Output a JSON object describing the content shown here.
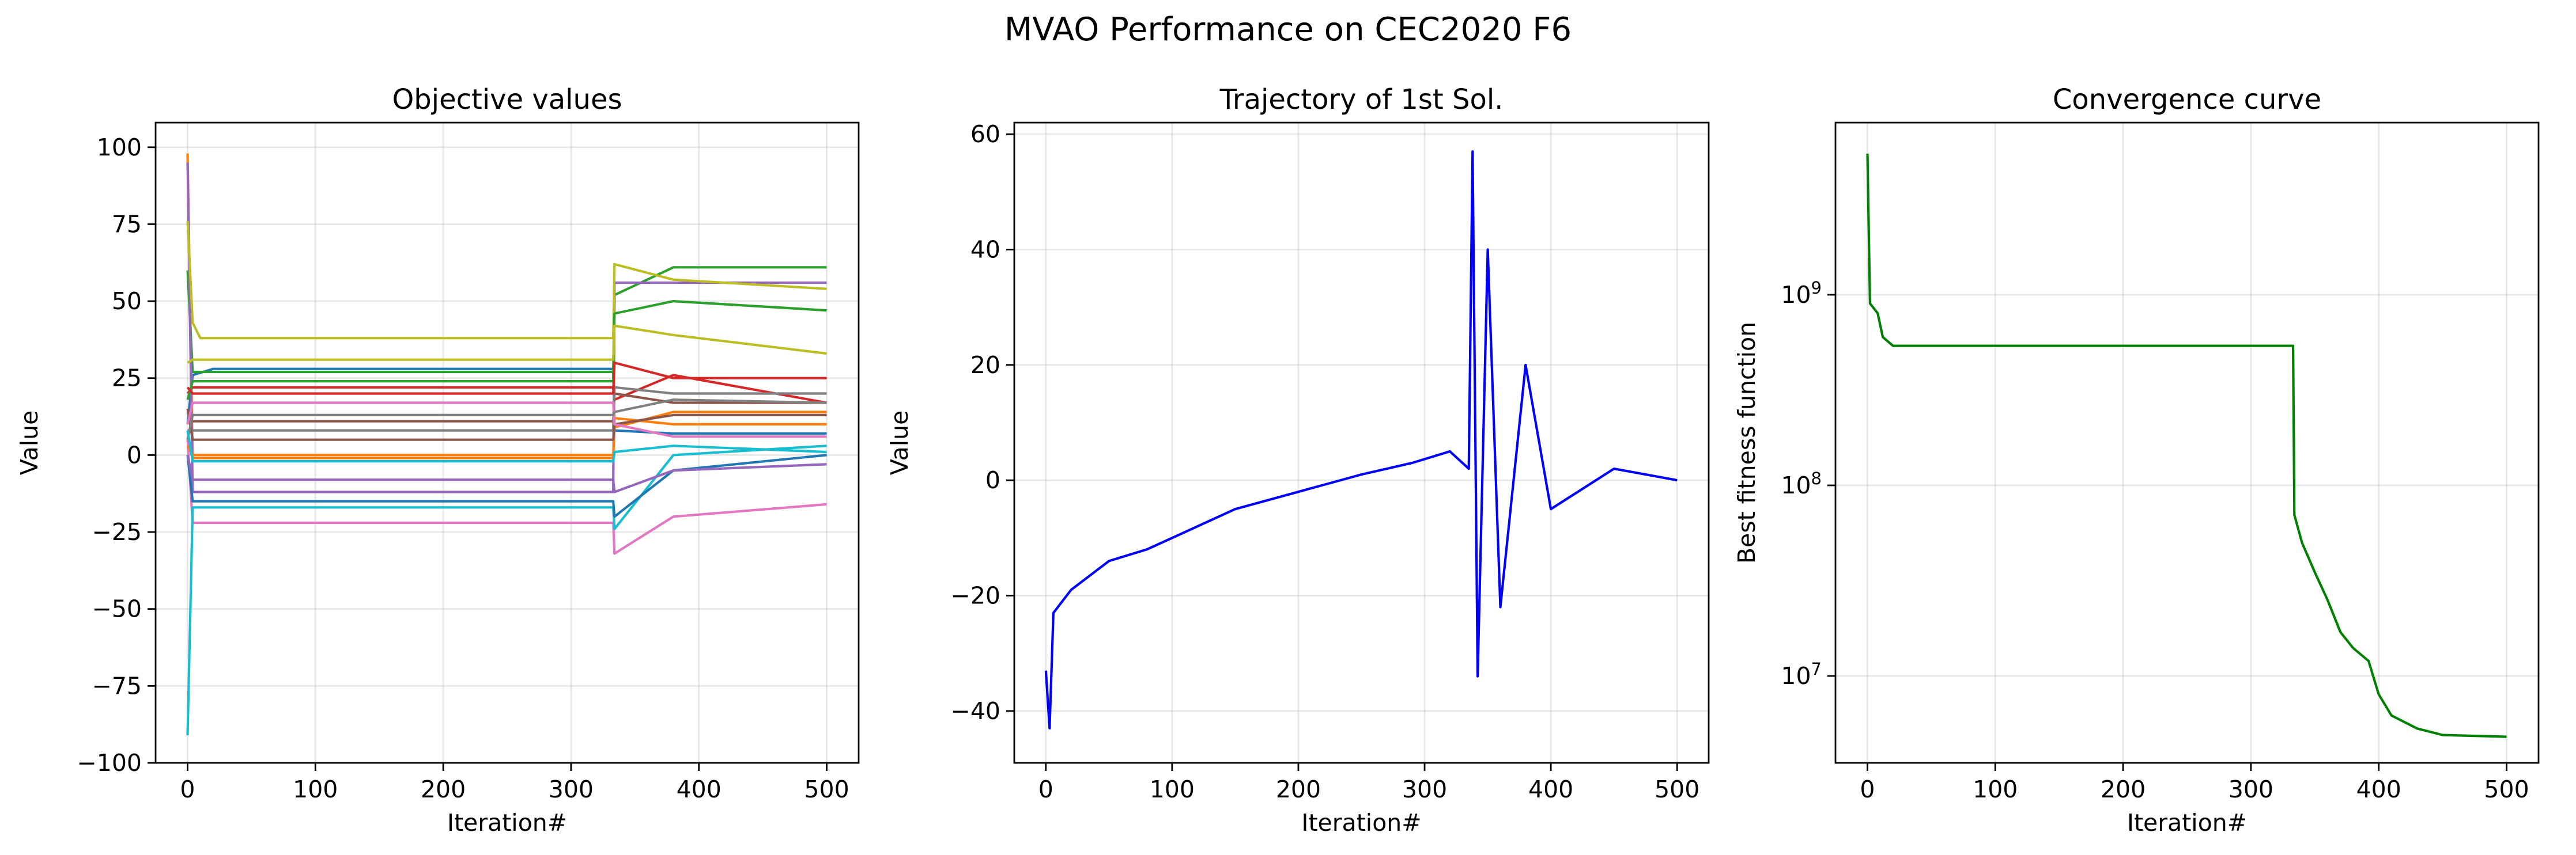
{
  "figure": {
    "title": "MVAO Performance on CEC2020 F6"
  },
  "chart_data": [
    {
      "type": "line",
      "title": "Objective values",
      "xlabel": "Iteration#",
      "ylabel": "Value",
      "xlim": [
        -25,
        525
      ],
      "ylim": [
        -100,
        108
      ],
      "xticks": [
        0,
        100,
        200,
        300,
        400,
        500
      ],
      "yticks": [
        -100,
        -75,
        -50,
        -25,
        0,
        25,
        50,
        75,
        100
      ],
      "grid": true,
      "legend": "none",
      "colors": [
        "#1f77b4",
        "#ff7f0e",
        "#2ca02c",
        "#d62728",
        "#9467bd",
        "#8c564b",
        "#e377c2",
        "#7f7f7f",
        "#bcbd22",
        "#17becf"
      ],
      "series": [
        {
          "values": [
            [
              0,
              10
            ],
            [
              4,
              26
            ],
            [
              20,
              28
            ],
            [
              333,
              28
            ],
            [
              334,
              8
            ],
            [
              380,
              7
            ],
            [
              500,
              7
            ]
          ]
        },
        {
          "values": [
            [
              0,
              98
            ],
            [
              4,
              -1
            ],
            [
              20,
              -1
            ],
            [
              333,
              -1
            ],
            [
              334,
              12
            ],
            [
              380,
              10
            ],
            [
              500,
              10
            ]
          ]
        },
        {
          "values": [
            [
              0,
              60
            ],
            [
              4,
              27
            ],
            [
              20,
              27
            ],
            [
              333,
              27
            ],
            [
              334,
              52
            ],
            [
              380,
              61
            ],
            [
              500,
              61
            ]
          ]
        },
        {
          "values": [
            [
              0,
              20
            ],
            [
              4,
              22
            ],
            [
              20,
              22
            ],
            [
              333,
              22
            ],
            [
              334,
              18
            ],
            [
              380,
              26
            ],
            [
              500,
              17
            ]
          ]
        },
        {
          "values": [
            [
              0,
              95
            ],
            [
              4,
              -12
            ],
            [
              20,
              -12
            ],
            [
              333,
              -12
            ],
            [
              334,
              56
            ],
            [
              380,
              56
            ],
            [
              500,
              56
            ]
          ]
        },
        {
          "values": [
            [
              0,
              12
            ],
            [
              4,
              11
            ],
            [
              20,
              11
            ],
            [
              333,
              11
            ],
            [
              334,
              20
            ],
            [
              380,
              17
            ],
            [
              500,
              17
            ]
          ]
        },
        {
          "values": [
            [
              0,
              5
            ],
            [
              4,
              -22
            ],
            [
              20,
              -22
            ],
            [
              333,
              -22
            ],
            [
              334,
              -32
            ],
            [
              380,
              -20
            ],
            [
              500,
              -16
            ]
          ]
        },
        {
          "values": [
            [
              0,
              8
            ],
            [
              4,
              8
            ],
            [
              20,
              8
            ],
            [
              333,
              8
            ],
            [
              334,
              22
            ],
            [
              380,
              20
            ],
            [
              500,
              20
            ]
          ]
        },
        {
          "values": [
            [
              0,
              76
            ],
            [
              4,
              43
            ],
            [
              10,
              38
            ],
            [
              333,
              38
            ],
            [
              334,
              62
            ],
            [
              380,
              57
            ],
            [
              500,
              54
            ]
          ]
        },
        {
          "values": [
            [
              0,
              -91
            ],
            [
              4,
              -17
            ],
            [
              20,
              -17
            ],
            [
              333,
              -17
            ],
            [
              334,
              -24
            ],
            [
              380,
              0
            ],
            [
              500,
              3
            ]
          ]
        },
        {
          "values": [
            [
              0,
              0
            ],
            [
              4,
              -15
            ],
            [
              20,
              -15
            ],
            [
              333,
              -15
            ],
            [
              334,
              -20
            ],
            [
              380,
              -5
            ],
            [
              500,
              0
            ]
          ]
        },
        {
          "values": [
            [
              0,
              3
            ],
            [
              4,
              0
            ],
            [
              20,
              0
            ],
            [
              333,
              0
            ],
            [
              334,
              9
            ],
            [
              380,
              14
            ],
            [
              500,
              14
            ]
          ]
        },
        {
          "values": [
            [
              0,
              18
            ],
            [
              4,
              24
            ],
            [
              20,
              24
            ],
            [
              333,
              24
            ],
            [
              334,
              46
            ],
            [
              380,
              50
            ],
            [
              500,
              47
            ]
          ]
        },
        {
          "values": [
            [
              0,
              22
            ],
            [
              4,
              20
            ],
            [
              20,
              20
            ],
            [
              333,
              20
            ],
            [
              334,
              30
            ],
            [
              380,
              25
            ],
            [
              500,
              25
            ]
          ]
        },
        {
          "values": [
            [
              0,
              0
            ],
            [
              4,
              -8
            ],
            [
              20,
              -8
            ],
            [
              333,
              -8
            ],
            [
              334,
              -12
            ],
            [
              380,
              -5
            ],
            [
              500,
              -3
            ]
          ]
        },
        {
          "values": [
            [
              0,
              15
            ],
            [
              4,
              5
            ],
            [
              20,
              5
            ],
            [
              333,
              5
            ],
            [
              334,
              10
            ],
            [
              380,
              13
            ],
            [
              500,
              13
            ]
          ]
        },
        {
          "values": [
            [
              0,
              10
            ],
            [
              4,
              17
            ],
            [
              20,
              17
            ],
            [
              333,
              17
            ],
            [
              334,
              10
            ],
            [
              380,
              6
            ],
            [
              500,
              6
            ]
          ]
        },
        {
          "values": [
            [
              0,
              5
            ],
            [
              4,
              13
            ],
            [
              20,
              13
            ],
            [
              333,
              13
            ],
            [
              334,
              14
            ],
            [
              380,
              18
            ],
            [
              500,
              17
            ]
          ]
        },
        {
          "values": [
            [
              0,
              30
            ],
            [
              4,
              31
            ],
            [
              20,
              31
            ],
            [
              333,
              31
            ],
            [
              334,
              42
            ],
            [
              380,
              39
            ],
            [
              500,
              33
            ]
          ]
        },
        {
          "values": [
            [
              0,
              8
            ],
            [
              4,
              -2
            ],
            [
              20,
              -2
            ],
            [
              333,
              -2
            ],
            [
              334,
              1
            ],
            [
              380,
              3
            ],
            [
              500,
              1
            ]
          ]
        }
      ]
    },
    {
      "type": "line",
      "title": "Trajectory of 1st Sol.",
      "xlabel": "Iteration#",
      "ylabel": "Value",
      "xlim": [
        -25,
        525
      ],
      "ylim": [
        -49,
        62
      ],
      "xticks": [
        0,
        100,
        200,
        300,
        400,
        500
      ],
      "yticks": [
        -40,
        -20,
        0,
        20,
        40,
        60
      ],
      "grid": true,
      "legend": "none",
      "colors": [
        "#0000ff"
      ],
      "series": [
        {
          "values": [
            [
              0,
              -33
            ],
            [
              3,
              -43
            ],
            [
              6,
              -23
            ],
            [
              20,
              -19
            ],
            [
              50,
              -14
            ],
            [
              80,
              -12
            ],
            [
              100,
              -10
            ],
            [
              150,
              -5
            ],
            [
              200,
              -2
            ],
            [
              250,
              1
            ],
            [
              290,
              3
            ],
            [
              320,
              5
            ],
            [
              335,
              2
            ],
            [
              338,
              57
            ],
            [
              342,
              -34
            ],
            [
              350,
              40
            ],
            [
              360,
              -22
            ],
            [
              380,
              20
            ],
            [
              400,
              -5
            ],
            [
              450,
              2
            ],
            [
              500,
              0
            ]
          ]
        }
      ]
    },
    {
      "type": "line",
      "title": "Convergence curve",
      "xlabel": "Iteration#",
      "ylabel": "Best fitness function",
      "xlim": [
        -25,
        525
      ],
      "ylim": [
        3500000,
        8000000000
      ],
      "log_y": true,
      "xticks": [
        0,
        100,
        200,
        300,
        400,
        500
      ],
      "yticks": [
        10000000,
        100000000,
        1000000000
      ],
      "grid": true,
      "legend": "none",
      "colors": [
        "#008000"
      ],
      "series": [
        {
          "values": [
            [
              0,
              5500000000
            ],
            [
              2,
              900000000
            ],
            [
              8,
              800000000
            ],
            [
              12,
              600000000
            ],
            [
              20,
              540000000
            ],
            [
              333,
              540000000
            ],
            [
              334,
              70000000
            ],
            [
              340,
              50000000
            ],
            [
              350,
              35000000
            ],
            [
              360,
              25000000
            ],
            [
              370,
              17000000
            ],
            [
              380,
              14000000
            ],
            [
              392,
              12000000
            ],
            [
              400,
              8000000
            ],
            [
              410,
              6200000
            ],
            [
              430,
              5300000
            ],
            [
              450,
              4900000
            ],
            [
              500,
              4800000
            ]
          ]
        }
      ]
    }
  ]
}
